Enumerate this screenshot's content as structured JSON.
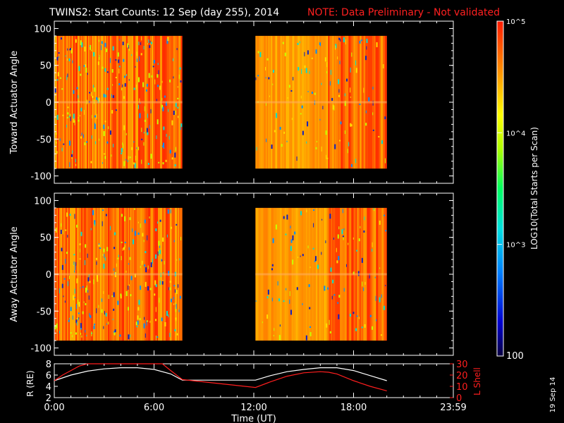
{
  "header": {
    "title": "TWINS2: Start Counts: 12 Sep (day 255), 2014",
    "note": "NOTE: Data Preliminary - Not validated"
  },
  "colors": {
    "background": "#000000",
    "foreground": "#ffffff",
    "note": "#ff2020",
    "orbit_R": "#ffffff",
    "orbit_L": "#ff1e1e"
  },
  "colorbar": {
    "label": "LOG10(Total Starts per Scan)",
    "ticks": [
      "10^5",
      "10^4",
      "10^3",
      "100"
    ],
    "range": [
      100,
      100000
    ],
    "scale": "log"
  },
  "panels": {
    "top": {
      "ylabel": "Toward Actuator Angle"
    },
    "middle": {
      "ylabel": "Away Actuator Angle"
    },
    "bottom": {
      "ylabel_left": "R (RE)",
      "ylabel_right": "L Shell"
    }
  },
  "xaxis": {
    "label": "Time (UT)",
    "ticks": [
      "0:00",
      "6:00",
      "12:00",
      "18:00",
      "23:59"
    ]
  },
  "side_date": "19 Sep 14",
  "chart_data": [
    {
      "type": "heatmap",
      "title": "TWINS2: Start Counts: 12 Sep (day 255), 2014",
      "xlabel": "",
      "ylabel": "Toward Actuator Angle",
      "x_unit": "hours UT",
      "xlim": [
        0,
        24
      ],
      "ylim": [
        -110,
        110
      ],
      "yticks": [
        100,
        50,
        0,
        -50,
        -100
      ],
      "angle_range": [
        -90,
        90
      ],
      "data_blocks_hours": [
        [
          0.0,
          7.7
        ],
        [
          12.1,
          20.0
        ]
      ],
      "value_range": [
        100,
        100000
      ],
      "dominant_level": "~3e4 - 1e5 (orange-red)"
    },
    {
      "type": "heatmap",
      "xlabel": "",
      "ylabel": "Away Actuator Angle",
      "x_unit": "hours UT",
      "xlim": [
        0,
        24
      ],
      "ylim": [
        -110,
        110
      ],
      "yticks": [
        100,
        50,
        0,
        -50,
        -100
      ],
      "angle_range": [
        -90,
        90
      ],
      "data_blocks_hours": [
        [
          0.0,
          7.7
        ],
        [
          12.1,
          20.0
        ]
      ],
      "value_range": [
        100,
        100000
      ],
      "dominant_level": "~3e4 - 1e5 (orange-red)"
    },
    {
      "type": "line",
      "xlabel": "Time (UT)",
      "xlim": [
        0,
        24
      ],
      "xtick_labels": [
        "0:00",
        "6:00",
        "12:00",
        "18:00",
        "23:59"
      ],
      "ylim_left": [
        2,
        8
      ],
      "yticks_left": [
        2,
        4,
        6,
        8
      ],
      "ylim_right": [
        0,
        30
      ],
      "yticks_right": [
        0,
        10,
        20,
        30
      ],
      "series": [
        {
          "name": "R (RE)",
          "axis": "left",
          "x": [
            0.0,
            1.0,
            2.0,
            3.0,
            4.0,
            5.0,
            6.0,
            7.0,
            7.7,
            12.1,
            13.0,
            14.0,
            15.0,
            16.0,
            17.0,
            18.0,
            19.0,
            20.0
          ],
          "y": [
            5.0,
            6.0,
            6.7,
            7.1,
            7.3,
            7.3,
            7.0,
            6.2,
            5.1,
            5.1,
            5.9,
            6.6,
            7.0,
            7.3,
            7.3,
            6.8,
            5.9,
            5.0
          ]
        },
        {
          "name": "L Shell",
          "axis": "right",
          "x": [
            0.0,
            0.5,
            1.0,
            1.5,
            2.0,
            6.5,
            7.0,
            7.7,
            12.1,
            13.0,
            14.0,
            15.0,
            16.0,
            16.5,
            17.0,
            18.0,
            19.0,
            20.0
          ],
          "y": [
            15,
            20,
            24,
            28,
            31,
            31,
            24,
            16,
            9,
            14,
            19,
            22,
            23,
            22.5,
            21,
            15,
            10,
            6
          ]
        }
      ]
    }
  ]
}
